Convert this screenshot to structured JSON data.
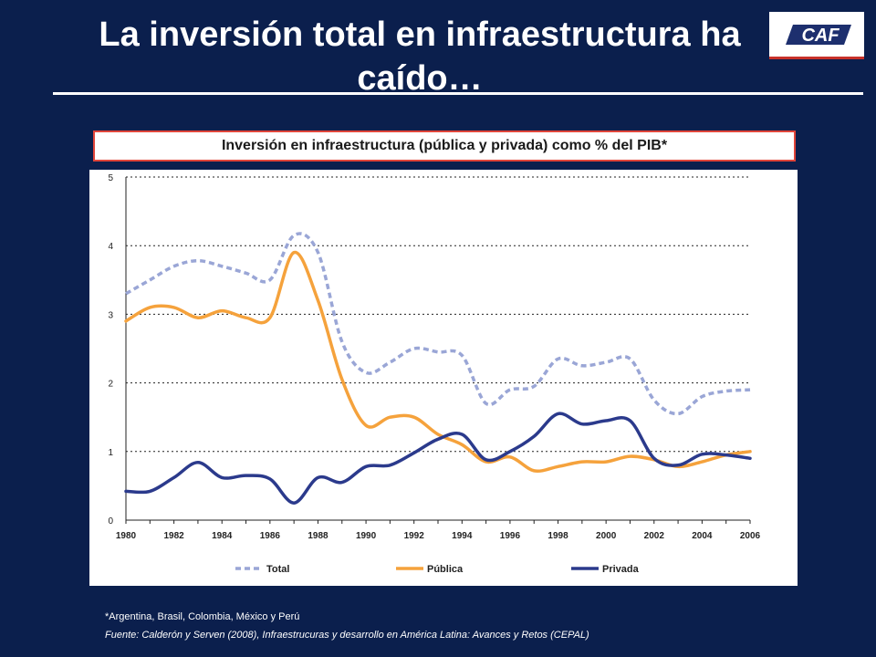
{
  "slide": {
    "title_line1": "La inversión total en infraestructura ha",
    "title_line2": "caído…",
    "logo_text": "CAF",
    "footnote": "*Argentina, Brasil, Colombia, México y Perú",
    "source": "Fuente: Calderón y Serven (2008), Infraestrucuras y desarrollo en América Latina: Avances y Retos (CEPAL)"
  },
  "colors": {
    "background": "#0b1f4d",
    "total": "#9aa6d6",
    "publica": "#f5a23c",
    "privada": "#2b3a8c",
    "title_box_border": "#e0453a"
  },
  "chart_data": {
    "type": "line",
    "title": "Inversión en infraestructura (pública y privada) como % del PIB*",
    "xlabel": "",
    "ylabel": "",
    "xlim": [
      1980,
      2006
    ],
    "ylim": [
      0,
      5
    ],
    "x_ticks": [
      "1980",
      "1982",
      "1984",
      "1986",
      "1988",
      "1990",
      "1992",
      "1994",
      "1996",
      "1998",
      "2000",
      "2002",
      "2004",
      "2006"
    ],
    "y_ticks": [
      "0",
      "1",
      "2",
      "3",
      "4",
      "5"
    ],
    "grid": "horizontal dotted",
    "legend_position": "bottom",
    "x": [
      1980,
      1981,
      1982,
      1983,
      1984,
      1985,
      1986,
      1987,
      1988,
      1989,
      1990,
      1991,
      1992,
      1993,
      1994,
      1995,
      1996,
      1997,
      1998,
      1999,
      2000,
      2001,
      2002,
      2003,
      2004,
      2005,
      2006
    ],
    "series": [
      {
        "name": "Total",
        "color": "#9aa6d6",
        "style": "dashed",
        "values": [
          3.3,
          3.5,
          3.7,
          3.78,
          3.7,
          3.6,
          3.5,
          4.15,
          3.9,
          2.6,
          2.15,
          2.3,
          2.5,
          2.45,
          2.4,
          1.7,
          1.9,
          1.95,
          2.35,
          2.25,
          2.3,
          2.35,
          1.75,
          1.55,
          1.8,
          1.88,
          1.9
        ]
      },
      {
        "name": "Pública",
        "color": "#f5a23c",
        "style": "solid",
        "values": [
          2.9,
          3.1,
          3.1,
          2.95,
          3.05,
          2.95,
          2.95,
          3.9,
          3.2,
          2.05,
          1.38,
          1.5,
          1.5,
          1.25,
          1.1,
          0.85,
          0.92,
          0.72,
          0.78,
          0.85,
          0.85,
          0.93,
          0.88,
          0.78,
          0.85,
          0.95,
          1.0
        ]
      },
      {
        "name": "Privada",
        "color": "#2b3a8c",
        "style": "solid",
        "values": [
          0.42,
          0.42,
          0.62,
          0.84,
          0.62,
          0.65,
          0.6,
          0.25,
          0.62,
          0.55,
          0.78,
          0.8,
          0.98,
          1.18,
          1.25,
          0.88,
          1.0,
          1.22,
          1.55,
          1.4,
          1.45,
          1.45,
          0.9,
          0.8,
          0.96,
          0.95,
          0.9
        ]
      }
    ]
  }
}
